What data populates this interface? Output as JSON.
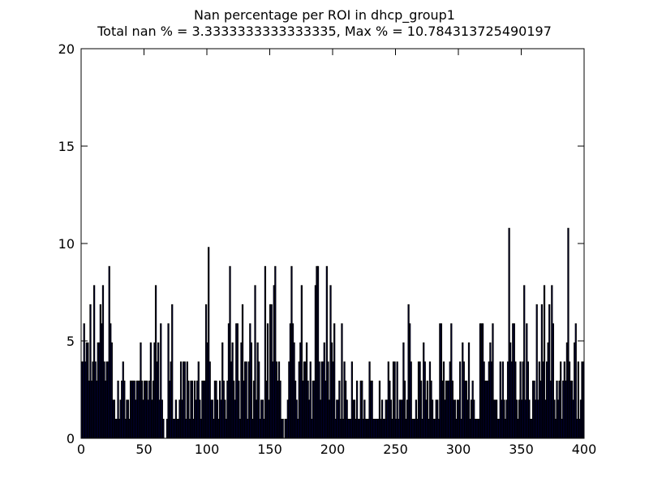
{
  "chart_data": {
    "type": "bar",
    "title": "Nan percentage per ROI in dhcp_group1",
    "subtitle": "Total nan % = 3.3333333333333335, Max % = 10.784313725490197",
    "color": "#000080",
    "edge_color": "#000000",
    "xlim": [
      0,
      400
    ],
    "xticks": [
      0,
      50,
      100,
      150,
      200,
      250,
      300,
      350,
      400
    ],
    "ylim": [
      0,
      20
    ],
    "yticks": [
      0,
      5,
      10,
      15,
      20
    ],
    "x": [
      0,
      1,
      2,
      3,
      4,
      5,
      6,
      7,
      8,
      9,
      10,
      11,
      12,
      13,
      14,
      15,
      16,
      17,
      18,
      19,
      20,
      21,
      22,
      23,
      24,
      25,
      26,
      27,
      28,
      29,
      30,
      31,
      32,
      33,
      34,
      35,
      36,
      37,
      38,
      39,
      40,
      41,
      42,
      43,
      44,
      45,
      46,
      47,
      48,
      49,
      50,
      51,
      52,
      53,
      54,
      55,
      56,
      57,
      58,
      59,
      60,
      61,
      62,
      63,
      64,
      65,
      66,
      67,
      68,
      69,
      70,
      71,
      72,
      73,
      74,
      75,
      76,
      77,
      78,
      79,
      80,
      81,
      82,
      83,
      84,
      85,
      86,
      87,
      88,
      89,
      90,
      91,
      92,
      93,
      94,
      95,
      96,
      97,
      98,
      99,
      100,
      101,
      102,
      103,
      104,
      105,
      106,
      107,
      108,
      109,
      110,
      111,
      112,
      113,
      114,
      115,
      116,
      117,
      118,
      119,
      120,
      121,
      122,
      123,
      124,
      125,
      126,
      127,
      128,
      129,
      130,
      131,
      132,
      133,
      134,
      135,
      136,
      137,
      138,
      139,
      140,
      141,
      142,
      143,
      144,
      145,
      146,
      147,
      148,
      149,
      150,
      151,
      152,
      153,
      154,
      155,
      156,
      157,
      158,
      159,
      160,
      161,
      162,
      163,
      164,
      165,
      166,
      167,
      168,
      169,
      170,
      171,
      172,
      173,
      174,
      175,
      176,
      177,
      178,
      179,
      180,
      181,
      182,
      183,
      184,
      185,
      186,
      187,
      188,
      189,
      190,
      191,
      192,
      193,
      194,
      195,
      196,
      197,
      198,
      199,
      200,
      201,
      202,
      203,
      204,
      205,
      206,
      207,
      208,
      209,
      210,
      211,
      212,
      213,
      214,
      215,
      216,
      217,
      218,
      219,
      220,
      221,
      222,
      223,
      224,
      225,
      226,
      227,
      228,
      229,
      230,
      231,
      232,
      233,
      234,
      235,
      236,
      237,
      238,
      239,
      240,
      241,
      242,
      243,
      244,
      245,
      246,
      247,
      248,
      249,
      250,
      251,
      252,
      253,
      254,
      255,
      256,
      257,
      258,
      259,
      260,
      261,
      262,
      263,
      264,
      265,
      266,
      267,
      268,
      269,
      270,
      271,
      272,
      273,
      274,
      275,
      276,
      277,
      278,
      279,
      280,
      281,
      282,
      283,
      284,
      285,
      286,
      287,
      288,
      289,
      290,
      291,
      292,
      293,
      294,
      295,
      296,
      297,
      298,
      299,
      300,
      301,
      302,
      303,
      304,
      305,
      306,
      307,
      308,
      309,
      310,
      311,
      312,
      313,
      314,
      315,
      316,
      317,
      318,
      319,
      320,
      321,
      322,
      323,
      324,
      325,
      326,
      327,
      328,
      329,
      330,
      331,
      332,
      333,
      334,
      335,
      336,
      337,
      338,
      339,
      340,
      341,
      342,
      343,
      344,
      345,
      346,
      347,
      348,
      349,
      350,
      351,
      352,
      353,
      354,
      355,
      356,
      357,
      358,
      359,
      360,
      361,
      362,
      363,
      364,
      365,
      366,
      367,
      368,
      369,
      370,
      371,
      372,
      373,
      374,
      375,
      376,
      377,
      378,
      379,
      380,
      381,
      382,
      383,
      384,
      385,
      386,
      387,
      388,
      389,
      390,
      391,
      392,
      393,
      394,
      395,
      396,
      397,
      398,
      399
    ],
    "values": [
      3.92,
      3.92,
      5.88,
      3.92,
      4.9,
      4.9,
      2.94,
      6.86,
      2.94,
      3.92,
      7.84,
      3.92,
      2.94,
      4.9,
      4.9,
      6.86,
      5.88,
      7.84,
      3.92,
      2.94,
      3.92,
      3.92,
      8.82,
      5.88,
      4.9,
      1.96,
      1.96,
      0.98,
      0.98,
      2.94,
      0.98,
      1.96,
      2.94,
      3.92,
      2.94,
      0.98,
      1.96,
      1.96,
      0.98,
      2.94,
      2.94,
      2.94,
      2.94,
      1.96,
      2.94,
      2.94,
      2.94,
      4.9,
      2.94,
      1.96,
      2.94,
      2.94,
      2.94,
      1.96,
      2.94,
      4.9,
      1.96,
      2.94,
      4.9,
      7.84,
      3.92,
      4.9,
      1.96,
      5.88,
      1.96,
      0.98,
      0,
      0,
      0.98,
      5.88,
      2.94,
      3.92,
      6.86,
      0.98,
      0.98,
      1.96,
      0.98,
      0.98,
      1.96,
      3.92,
      1.96,
      3.92,
      3.92,
      0.98,
      3.92,
      2.94,
      0.98,
      2.94,
      2.94,
      0.98,
      2.94,
      1.96,
      2.94,
      3.92,
      1.96,
      0.98,
      2.94,
      2.94,
      2.94,
      6.86,
      4.9,
      9.8,
      3.92,
      1.96,
      1.96,
      0.98,
      2.94,
      2.94,
      1.96,
      0.98,
      2.94,
      1.96,
      4.9,
      2.94,
      1.96,
      0.98,
      2.94,
      5.88,
      8.82,
      3.92,
      4.9,
      2.94,
      1.96,
      5.88,
      5.88,
      2.94,
      0.98,
      4.9,
      6.86,
      2.94,
      3.92,
      3.92,
      0.98,
      3.92,
      5.88,
      4.9,
      0.98,
      2.94,
      7.84,
      1.96,
      4.9,
      3.92,
      0.98,
      1.96,
      1.96,
      0.98,
      8.82,
      2.94,
      5.88,
      1.96,
      6.86,
      6.86,
      3.92,
      7.84,
      8.82,
      3.92,
      2.94,
      3.92,
      2.94,
      0.98,
      0.98,
      0,
      0.98,
      0.98,
      1.96,
      3.92,
      5.88,
      8.82,
      5.88,
      4.9,
      2.94,
      1.96,
      0.98,
      3.92,
      4.9,
      7.84,
      2.94,
      3.92,
      3.92,
      4.9,
      2.94,
      1.96,
      3.92,
      0.98,
      2.94,
      2.94,
      7.84,
      8.82,
      8.82,
      3.92,
      1.96,
      3.92,
      3.92,
      4.9,
      2.94,
      8.82,
      3.92,
      1.96,
      7.84,
      4.9,
      3.92,
      5.88,
      0.98,
      1.96,
      1.96,
      2.94,
      0.98,
      5.88,
      0.98,
      3.92,
      2.94,
      1.96,
      0.98,
      0.98,
      0.98,
      3.92,
      1.96,
      1.96,
      0.98,
      2.94,
      0.98,
      0.98,
      2.94,
      2.94,
      0.98,
      1.96,
      0.98,
      0.98,
      0.98,
      3.92,
      2.94,
      2.94,
      0.98,
      0.98,
      0.98,
      0.98,
      0.98,
      2.94,
      0.98,
      1.96,
      0.98,
      0.98,
      1.96,
      1.96,
      3.92,
      2.94,
      1.96,
      0.98,
      3.92,
      3.92,
      0.98,
      3.92,
      0.98,
      1.96,
      1.96,
      1.96,
      4.9,
      2.94,
      0.98,
      1.96,
      6.86,
      5.88,
      3.92,
      0.98,
      0.98,
      0.98,
      1.96,
      0.98,
      3.92,
      3.92,
      2.94,
      0.98,
      4.9,
      3.92,
      1.96,
      2.94,
      0.98,
      3.92,
      2.94,
      1.96,
      0.98,
      0.98,
      1.96,
      1.96,
      0.98,
      5.88,
      5.88,
      2.94,
      3.92,
      1.96,
      2.94,
      2.94,
      2.94,
      3.92,
      5.88,
      2.94,
      1.96,
      1.96,
      0.98,
      1.96,
      1.96,
      3.92,
      0.98,
      4.9,
      3.92,
      2.94,
      2.94,
      1.96,
      4.9,
      0.98,
      1.96,
      2.94,
      1.96,
      0.98,
      0.98,
      0.98,
      0.98,
      5.88,
      5.88,
      5.88,
      3.92,
      2.94,
      2.94,
      2.94,
      3.92,
      4.9,
      3.92,
      5.88,
      1.96,
      1.96,
      1.96,
      0.98,
      0.98,
      3.92,
      1.96,
      3.92,
      1.96,
      0.98,
      1.96,
      3.92,
      10.78,
      4.9,
      3.92,
      5.88,
      5.88,
      3.92,
      1.96,
      0.98,
      1.96,
      3.92,
      1.96,
      3.92,
      7.84,
      1.96,
      5.88,
      3.92,
      1.96,
      0.98,
      0.98,
      2.94,
      2.94,
      1.96,
      6.86,
      1.96,
      3.92,
      2.94,
      6.86,
      3.92,
      7.84,
      1.96,
      3.92,
      4.9,
      6.86,
      2.94,
      7.84,
      5.88,
      1.96,
      0.98,
      2.94,
      1.96,
      2.94,
      3.92,
      0.98,
      2.94,
      3.92,
      2.94,
      4.9,
      10.78,
      3.92,
      2.94,
      2.94,
      1.96,
      4.9,
      5.88,
      0.98,
      3.92,
      0.98,
      1.96,
      3.92,
      3.92
    ]
  }
}
